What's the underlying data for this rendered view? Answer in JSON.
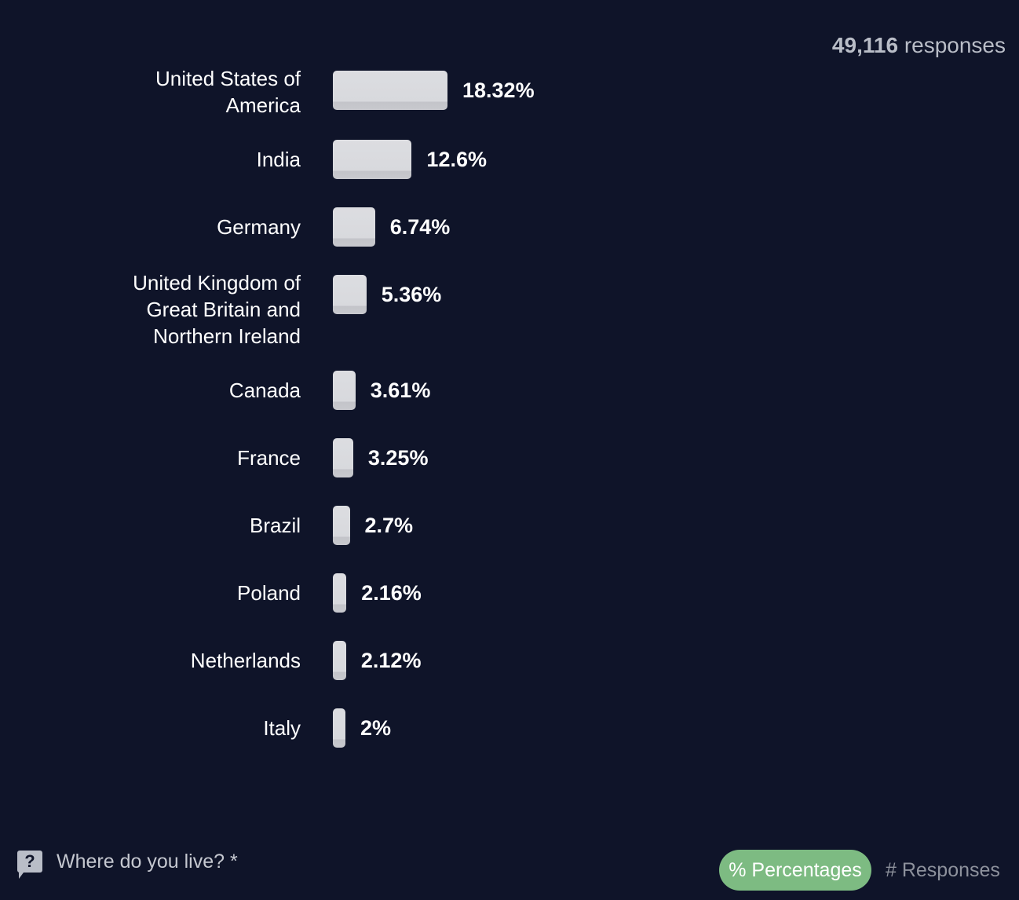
{
  "header": {
    "count": "49,116",
    "count_suffix": "responses"
  },
  "chart_data": {
    "type": "bar",
    "orientation": "horizontal",
    "categories": [
      "United States of America",
      "India",
      "Germany",
      "United Kingdom of Great Britain and Northern Ireland",
      "Canada",
      "France",
      "Brazil",
      "Poland",
      "Netherlands",
      "Italy"
    ],
    "values": [
      18.32,
      12.6,
      6.74,
      5.36,
      3.61,
      3.25,
      2.7,
      2.16,
      2.12,
      2
    ],
    "labels": [
      "18.32%",
      "12.6%",
      "6.74%",
      "5.36%",
      "3.61%",
      "3.25%",
      "2.7%",
      "2.16%",
      "2.12%",
      "2%"
    ],
    "unit": "%"
  },
  "footer": {
    "help_icon": "?",
    "question": "Where do you live? *",
    "toggle_percentages": "% Percentages",
    "toggle_responses": "# Responses",
    "accent": "#7dbb82"
  }
}
